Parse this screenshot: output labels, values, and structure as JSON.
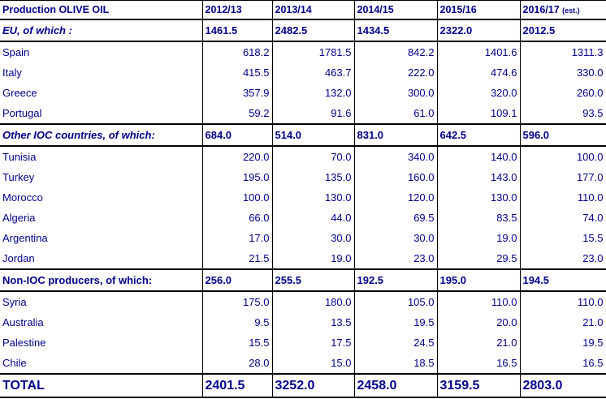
{
  "header": {
    "title": "Production OLIVE OIL",
    "columns": [
      "2012/13",
      "2013/14",
      "2014/15",
      "2015/16",
      "2016/17"
    ],
    "last_col_note": "(est.)"
  },
  "groups": [
    {
      "label": "EU, of which :",
      "totals": [
        "1461.5",
        "2482.5",
        "1434.5",
        "2322.0",
        "2012.5"
      ],
      "rows": [
        {
          "name": "Spain",
          "values": [
            "618.2",
            "1781.5",
            "842.2",
            "1401.6",
            "1311.3"
          ]
        },
        {
          "name": "Italy",
          "values": [
            "415.5",
            "463.7",
            "222.0",
            "474.6",
            "330.0"
          ]
        },
        {
          "name": "Greece",
          "values": [
            "357.9",
            "132.0",
            "300.0",
            "320.0",
            "260.0"
          ]
        },
        {
          "name": "Portugal",
          "values": [
            "59.2",
            "91.6",
            "61.0",
            "109.1",
            "93.5"
          ]
        }
      ]
    },
    {
      "label": "Other IOC countries, of which:",
      "totals": [
        "684.0",
        "514.0",
        "831.0",
        "642.5",
        "596.0"
      ],
      "rows": [
        {
          "name": "Tunisia",
          "values": [
            "220.0",
            "70.0",
            "340.0",
            "140.0",
            "100.0"
          ]
        },
        {
          "name": "Turkey",
          "values": [
            "195.0",
            "135.0",
            "160.0",
            "143.0",
            "177.0"
          ]
        },
        {
          "name": "Morocco",
          "values": [
            "100.0",
            "130.0",
            "120.0",
            "130.0",
            "110.0"
          ]
        },
        {
          "name": "Algeria",
          "values": [
            "66.0",
            "44.0",
            "69.5",
            "83.5",
            "74.0"
          ]
        },
        {
          "name": "Argentina",
          "values": [
            "17.0",
            "30.0",
            "30.0",
            "19.0",
            "15.5"
          ]
        },
        {
          "name": "Jordan",
          "values": [
            "21.5",
            "19.0",
            "23.0",
            "29.5",
            "23.0"
          ]
        }
      ]
    },
    {
      "label": "Non-IOC producers, of which:",
      "totals": [
        "256.0",
        "255.5",
        "192.5",
        "195.0",
        "194.5"
      ],
      "rows": [
        {
          "name": "Syria",
          "values": [
            "175.0",
            "180.0",
            "105.0",
            "110.0",
            "110.0"
          ]
        },
        {
          "name": "Australia",
          "values": [
            "9.5",
            "13.5",
            "19.5",
            "20.0",
            "21.0"
          ]
        },
        {
          "name": "Palestine",
          "values": [
            "15.5",
            "17.5",
            "24.5",
            "21.0",
            "19.5"
          ]
        },
        {
          "name": "Chile",
          "values": [
            "28.0",
            "15.0",
            "18.5",
            "16.5",
            "16.5"
          ]
        }
      ]
    }
  ],
  "total": {
    "label": "TOTAL",
    "values": [
      "2401.5",
      "3252.0",
      "2458.0",
      "3159.5",
      "2803.0"
    ]
  }
}
